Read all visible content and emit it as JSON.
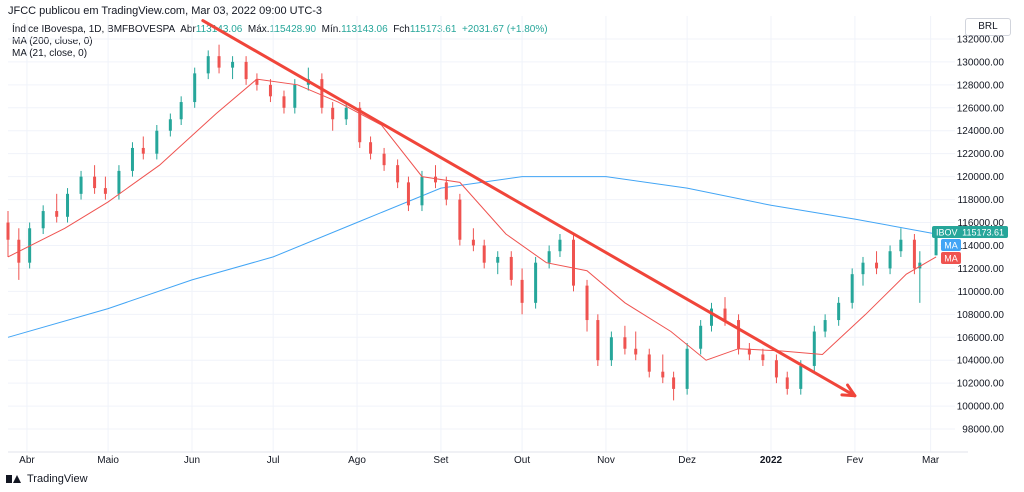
{
  "header": {
    "publisher_line": "JFCC publicou em TradingView.com, Mar 03, 2022 09:00 UTC-3"
  },
  "legend": {
    "symbol": "Índice IBovespa, 1D, BMFBOVESPA",
    "abr_label": "Abr",
    "abr_value": "113143.06",
    "max_label": "Máx.",
    "max_value": "115428.90",
    "min_label": "Mín.",
    "min_value": "113143.06",
    "fch_label": "Fch",
    "fch_value": "115173.61",
    "change": "+2031.67 (+1.80%)",
    "ma1": "MA (200, close, 0)",
    "ma2": "MA (21, close, 0)"
  },
  "currency_label": "BRL",
  "footer": {
    "brand": "TradingView"
  },
  "price_tags": {
    "ibov_label": "IBOV",
    "ibov_value": "115173.61",
    "ma1_label": "MA",
    "ma2_label": "MA"
  },
  "colors": {
    "up": "#26a69a",
    "down": "#ef5350",
    "ma200": "#42a5f5",
    "ma21": "#ef5350",
    "trendline": "#f0453a"
  },
  "chart_data": {
    "type": "line",
    "title": "",
    "xlabel": "",
    "ylabel": "",
    "ylim": [
      96000,
      134000
    ],
    "y_ticks": [
      98000,
      100000,
      102000,
      104000,
      106000,
      108000,
      110000,
      112000,
      114000,
      116000,
      118000,
      120000,
      122000,
      124000,
      126000,
      128000,
      130000,
      132000
    ],
    "x_range": [
      "2021-03-25",
      "2022-03-10"
    ],
    "x_ticks": [
      {
        "date": "2021-04-01",
        "label": "Abr",
        "bold": false
      },
      {
        "date": "2021-05-01",
        "label": "Maio",
        "bold": false
      },
      {
        "date": "2021-06-01",
        "label": "Jun",
        "bold": false
      },
      {
        "date": "2021-07-01",
        "label": "Jul",
        "bold": false
      },
      {
        "date": "2021-08-01",
        "label": "Ago",
        "bold": false
      },
      {
        "date": "2021-09-01",
        "label": "Set",
        "bold": false
      },
      {
        "date": "2021-10-01",
        "label": "Out",
        "bold": false
      },
      {
        "date": "2021-11-01",
        "label": "Nov",
        "bold": false
      },
      {
        "date": "2021-12-01",
        "label": "Dez",
        "bold": false
      },
      {
        "date": "2022-01-01",
        "label": "2022",
        "bold": true
      },
      {
        "date": "2022-02-01",
        "label": "Fev",
        "bold": false
      },
      {
        "date": "2022-03-01",
        "label": "Mar",
        "bold": false
      }
    ],
    "series": [
      {
        "name": "IBOV",
        "kind": "close",
        "color": "#26a69a",
        "points": [
          [
            "2021-03-25",
            115000
          ],
          [
            "2021-04-01",
            113500
          ],
          [
            "2021-04-10",
            117500
          ],
          [
            "2021-04-20",
            120000
          ],
          [
            "2021-05-01",
            119000
          ],
          [
            "2021-05-10",
            122500
          ],
          [
            "2021-05-20",
            122000
          ],
          [
            "2021-05-28",
            126000
          ],
          [
            "2021-06-07",
            130500
          ],
          [
            "2021-06-15",
            129500
          ],
          [
            "2021-06-25",
            128000
          ],
          [
            "2021-07-05",
            127000
          ],
          [
            "2021-07-15",
            128000
          ],
          [
            "2021-07-22",
            125000
          ],
          [
            "2021-08-01",
            122000
          ],
          [
            "2021-08-12",
            121000
          ],
          [
            "2021-08-20",
            117500
          ],
          [
            "2021-08-30",
            119500
          ],
          [
            "2021-09-08",
            114500
          ],
          [
            "2021-09-20",
            112500
          ],
          [
            "2021-09-30",
            111000
          ],
          [
            "2021-10-08",
            112500
          ],
          [
            "2021-10-15",
            114500
          ],
          [
            "2021-10-22",
            107500
          ],
          [
            "2021-11-01",
            104000
          ],
          [
            "2021-11-10",
            105500
          ],
          [
            "2021-11-20",
            103500
          ],
          [
            "2021-11-30",
            101500
          ],
          [
            "2021-12-08",
            106500
          ],
          [
            "2021-12-15",
            108500
          ],
          [
            "2021-12-22",
            105000
          ],
          [
            "2022-01-01",
            104000
          ],
          [
            "2022-01-08",
            102000
          ],
          [
            "2022-01-15",
            107000
          ],
          [
            "2022-01-25",
            109000
          ],
          [
            "2022-02-01",
            112000
          ],
          [
            "2022-02-10",
            113000
          ],
          [
            "2022-02-16",
            114000
          ],
          [
            "2022-02-24",
            112000
          ],
          [
            "2022-03-03",
            115173.61
          ]
        ]
      },
      {
        "name": "MA",
        "kind": "ma200",
        "color": "#42a5f5",
        "points": [
          [
            "2021-03-25",
            106000
          ],
          [
            "2021-05-01",
            108500
          ],
          [
            "2021-06-01",
            111000
          ],
          [
            "2021-07-01",
            113000
          ],
          [
            "2021-08-01",
            116000
          ],
          [
            "2021-09-01",
            119000
          ],
          [
            "2021-10-01",
            120000
          ],
          [
            "2021-11-01",
            120000
          ],
          [
            "2021-12-01",
            119000
          ],
          [
            "2022-01-01",
            117500
          ],
          [
            "2022-02-01",
            116300
          ],
          [
            "2022-03-03",
            115000
          ]
        ]
      },
      {
        "name": "MA",
        "kind": "ma21",
        "color": "#ef5350",
        "points": [
          [
            "2021-03-25",
            113000
          ],
          [
            "2021-04-15",
            115500
          ],
          [
            "2021-05-01",
            117800
          ],
          [
            "2021-05-20",
            121000
          ],
          [
            "2021-06-10",
            125500
          ],
          [
            "2021-06-25",
            128500
          ],
          [
            "2021-07-10",
            128000
          ],
          [
            "2021-07-25",
            126500
          ],
          [
            "2021-08-10",
            124500
          ],
          [
            "2021-08-25",
            120000
          ],
          [
            "2021-09-08",
            119500
          ],
          [
            "2021-09-25",
            115000
          ],
          [
            "2021-10-10",
            112500
          ],
          [
            "2021-10-25",
            111800
          ],
          [
            "2021-11-08",
            109000
          ],
          [
            "2021-11-25",
            106500
          ],
          [
            "2021-12-08",
            104000
          ],
          [
            "2021-12-20",
            105000
          ],
          [
            "2022-01-05",
            104800
          ],
          [
            "2022-01-20",
            104500
          ],
          [
            "2022-02-05",
            108000
          ],
          [
            "2022-02-20",
            111500
          ],
          [
            "2022-03-03",
            113000
          ]
        ]
      }
    ],
    "candles": [
      [
        "2021-03-25",
        116000,
        117000,
        113000,
        114500
      ],
      [
        "2021-03-29",
        114500,
        115500,
        111000,
        112500
      ],
      [
        "2021-04-02",
        112500,
        116000,
        112000,
        115500
      ],
      [
        "2021-04-07",
        115500,
        117500,
        115000,
        117000
      ],
      [
        "2021-04-12",
        117000,
        118500,
        116000,
        116500
      ],
      [
        "2021-04-16",
        116500,
        119000,
        116000,
        118500
      ],
      [
        "2021-04-21",
        118500,
        120500,
        118000,
        120000
      ],
      [
        "2021-04-26",
        120000,
        121000,
        118500,
        119000
      ],
      [
        "2021-04-30",
        119000,
        120000,
        118000,
        118500
      ],
      [
        "2021-05-05",
        118500,
        121000,
        118000,
        120500
      ],
      [
        "2021-05-10",
        120500,
        123000,
        120000,
        122500
      ],
      [
        "2021-05-14",
        122500,
        123500,
        121500,
        122000
      ],
      [
        "2021-05-19",
        122000,
        124500,
        121500,
        124000
      ],
      [
        "2021-05-24",
        124000,
        125500,
        123500,
        125000
      ],
      [
        "2021-05-28",
        125000,
        127000,
        124500,
        126500
      ],
      [
        "2021-06-02",
        126500,
        129500,
        126000,
        129000
      ],
      [
        "2021-06-07",
        129000,
        131000,
        128500,
        130500
      ],
      [
        "2021-06-11",
        130500,
        131500,
        129000,
        129500
      ],
      [
        "2021-06-16",
        129500,
        130500,
        128500,
        130000
      ],
      [
        "2021-06-21",
        130000,
        130500,
        128000,
        128500
      ],
      [
        "2021-06-25",
        128500,
        129000,
        127500,
        128000
      ],
      [
        "2021-06-30",
        128000,
        128500,
        126500,
        127000
      ],
      [
        "2021-07-05",
        127000,
        127500,
        125500,
        126000
      ],
      [
        "2021-07-09",
        126000,
        128500,
        125500,
        128000
      ],
      [
        "2021-07-14",
        128000,
        129500,
        127500,
        128500
      ],
      [
        "2021-07-19",
        128500,
        129000,
        125500,
        126000
      ],
      [
        "2021-07-23",
        126000,
        126500,
        124000,
        125000
      ],
      [
        "2021-07-28",
        125000,
        126500,
        124500,
        126000
      ],
      [
        "2021-08-02",
        126000,
        126500,
        122500,
        123000
      ],
      [
        "2021-08-06",
        123000,
        123500,
        121500,
        122000
      ],
      [
        "2021-08-11",
        122000,
        122500,
        120500,
        121000
      ],
      [
        "2021-08-16",
        121000,
        121500,
        119000,
        119500
      ],
      [
        "2021-08-20",
        119500,
        120000,
        117000,
        117500
      ],
      [
        "2021-08-25",
        117500,
        120500,
        117000,
        120000
      ],
      [
        "2021-08-30",
        120000,
        121000,
        119000,
        119500
      ],
      [
        "2021-09-03",
        119500,
        120000,
        117500,
        118000
      ],
      [
        "2021-09-08",
        118000,
        118500,
        114000,
        114500
      ],
      [
        "2021-09-13",
        114500,
        115500,
        113500,
        114000
      ],
      [
        "2021-09-17",
        114000,
        114500,
        112000,
        112500
      ],
      [
        "2021-09-22",
        112500,
        113500,
        111500,
        113000
      ],
      [
        "2021-09-27",
        113000,
        113500,
        110500,
        111000
      ],
      [
        "2021-10-01",
        111000,
        112000,
        108000,
        109000
      ],
      [
        "2021-10-06",
        109000,
        113000,
        108500,
        112500
      ],
      [
        "2021-10-11",
        112500,
        114000,
        112000,
        113500
      ],
      [
        "2021-10-15",
        113500,
        115000,
        113000,
        114500
      ],
      [
        "2021-10-20",
        114500,
        115000,
        110000,
        110500
      ],
      [
        "2021-10-25",
        110500,
        111000,
        106500,
        107500
      ],
      [
        "2021-10-29",
        107500,
        108000,
        103500,
        104000
      ],
      [
        "2021-11-03",
        104000,
        106500,
        103500,
        106000
      ],
      [
        "2021-11-08",
        106000,
        107000,
        104500,
        105000
      ],
      [
        "2021-11-12",
        105000,
        106500,
        104000,
        104500
      ],
      [
        "2021-11-17",
        104500,
        105000,
        102500,
        103000
      ],
      [
        "2021-11-22",
        103000,
        104500,
        102000,
        102500
      ],
      [
        "2021-11-26",
        102500,
        103000,
        100500,
        101500
      ],
      [
        "2021-12-01",
        101500,
        105500,
        101000,
        105000
      ],
      [
        "2021-12-06",
        105000,
        107500,
        104500,
        107000
      ],
      [
        "2021-12-10",
        107000,
        109000,
        106500,
        108500
      ],
      [
        "2021-12-15",
        108500,
        109500,
        107000,
        107500
      ],
      [
        "2021-12-20",
        107500,
        108000,
        104500,
        105000
      ],
      [
        "2021-12-24",
        105000,
        105500,
        104000,
        104500
      ],
      [
        "2021-12-29",
        104500,
        105000,
        103500,
        104000
      ],
      [
        "2022-01-03",
        104000,
        104500,
        102000,
        102500
      ],
      [
        "2022-01-07",
        102500,
        103000,
        101000,
        101500
      ],
      [
        "2022-01-12",
        101500,
        104000,
        101000,
        103500
      ],
      [
        "2022-01-17",
        103500,
        107000,
        103000,
        106500
      ],
      [
        "2022-01-21",
        106500,
        108000,
        106000,
        107500
      ],
      [
        "2022-01-26",
        107500,
        109500,
        107000,
        109000
      ],
      [
        "2022-01-31",
        109000,
        112000,
        108500,
        111500
      ],
      [
        "2022-02-04",
        111500,
        113000,
        110500,
        112500
      ],
      [
        "2022-02-09",
        112500,
        113500,
        111500,
        112000
      ],
      [
        "2022-02-14",
        112000,
        114000,
        111500,
        113500
      ],
      [
        "2022-02-18",
        113500,
        115500,
        113000,
        114500
      ],
      [
        "2022-02-23",
        114500,
        115000,
        111500,
        112000
      ],
      [
        "2022-02-25",
        112000,
        113500,
        109000,
        112500
      ],
      [
        "2022-03-03",
        113143.06,
        115428.9,
        113143.06,
        115173.61
      ]
    ],
    "annotations": [
      {
        "type": "trendline_arrow",
        "color": "#f0453a",
        "from": [
          "2021-06-05",
          133600
        ],
        "to": [
          "2022-02-01",
          100900
        ]
      }
    ]
  }
}
